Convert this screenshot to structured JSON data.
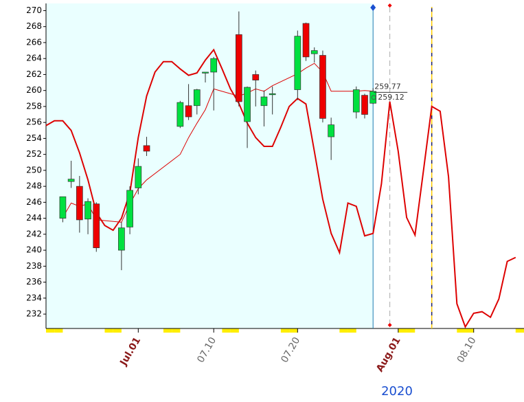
{
  "chart_data": {
    "type": "candlestick",
    "x": [
      "2020-06-22",
      "2020-06-23",
      "2020-06-24",
      "2020-06-25",
      "2020-06-26",
      "2020-06-29",
      "2020-06-30",
      "2020-07-01",
      "2020-07-02",
      "2020-07-06",
      "2020-07-07",
      "2020-07-08",
      "2020-07-09",
      "2020-07-10",
      "2020-07-13",
      "2020-07-14",
      "2020-07-15",
      "2020-07-16",
      "2020-07-17",
      "2020-07-20",
      "2020-07-21",
      "2020-07-22",
      "2020-07-23",
      "2020-07-24",
      "2020-07-27",
      "2020-07-28",
      "2020-07-29"
    ],
    "open": [
      244,
      248.6,
      248,
      243.9,
      245.8,
      240,
      242.9,
      247.8,
      253.1,
      255.5,
      258.1,
      258.1,
      262.2,
      262.3,
      267,
      256.1,
      262,
      258.1,
      259.5,
      260.1,
      268.4,
      264.6,
      264.4,
      254.2,
      257.3,
      259.4,
      258.4
    ],
    "high": [
      246.7,
      251.2,
      249.3,
      246.5,
      246,
      243.5,
      248,
      251.5,
      254.2,
      258.7,
      260.8,
      260.2,
      262.3,
      264.2,
      269.9,
      260.5,
      262.5,
      260,
      260.5,
      267.5,
      268.5,
      265.4,
      265,
      256.6,
      260.5,
      259.6,
      260.3
    ],
    "low": [
      243.5,
      247.8,
      242.2,
      242,
      239.8,
      237.5,
      242,
      247,
      251.8,
      255.3,
      256.3,
      257,
      261,
      257.5,
      258,
      252.8,
      258,
      255.5,
      257,
      258.8,
      263.7,
      263.5,
      256,
      251.3,
      256.5,
      256.5,
      258.3
    ],
    "close": [
      246.7,
      248.9,
      243.8,
      246.1,
      240.3,
      242.8,
      247.5,
      250.5,
      252.4,
      258.5,
      256.7,
      260.1,
      262.3,
      264,
      258.6,
      260.4,
      261.3,
      259.2,
      259.6,
      266.8,
      264.2,
      265,
      256.5,
      255.7,
      260.1,
      257,
      259.9
    ],
    "up_color": "#00e040",
    "down_color": "#ee0000",
    "series": [
      {
        "color": "#dd0000",
        "width": 2,
        "x": [
          "2020-06-20",
          "2020-06-21",
          "2020-06-22",
          "2020-06-23",
          "2020-06-24",
          "2020-06-25",
          "2020-06-26",
          "2020-06-27",
          "2020-06-28",
          "2020-06-29",
          "2020-06-30",
          "2020-07-01",
          "2020-07-02",
          "2020-07-03",
          "2020-07-04",
          "2020-07-05",
          "2020-07-06",
          "2020-07-07",
          "2020-07-08",
          "2020-07-09",
          "2020-07-10",
          "2020-07-11",
          "2020-07-12",
          "2020-07-13",
          "2020-07-14",
          "2020-07-15",
          "2020-07-16",
          "2020-07-17",
          "2020-07-18",
          "2020-07-19",
          "2020-07-20",
          "2020-07-21",
          "2020-07-22",
          "2020-07-23",
          "2020-07-24",
          "2020-07-25",
          "2020-07-26",
          "2020-07-27",
          "2020-07-28",
          "2020-07-29",
          "2020-07-30",
          "2020-07-31",
          "2020-08-01",
          "2020-08-02",
          "2020-08-03",
          "2020-08-04",
          "2020-08-05",
          "2020-08-06",
          "2020-08-07",
          "2020-08-08",
          "2020-08-09",
          "2020-08-10",
          "2020-08-11",
          "2020-08-12",
          "2020-08-13",
          "2020-08-14",
          "2020-08-15"
        ],
        "values": [
          255.6,
          256.2,
          256.2,
          255,
          252.2,
          248.8,
          244.7,
          243.1,
          242.5,
          244,
          247.2,
          254.1,
          259.3,
          262.3,
          263.6,
          263.6,
          262.7,
          261.9,
          262.2,
          263.8,
          265.1,
          262.7,
          260.2,
          258.4,
          255.9,
          254.1,
          253,
          253,
          255.4,
          258,
          259,
          258.3,
          252.4,
          246.4,
          242.1,
          239.7,
          245.9,
          245.5,
          241.8,
          242.1,
          248.3,
          258.6,
          252.4,
          244.1,
          241.9,
          249.9,
          258,
          257.4,
          249.2,
          233.3,
          230.4,
          232.1,
          232.3,
          231.6,
          233.9,
          238.6,
          239.1
        ]
      },
      {
        "color": "#dd0000",
        "width": 1,
        "x": [
          "2020-06-22",
          "2020-06-23",
          "2020-06-24",
          "2020-06-25",
          "2020-06-26",
          "2020-06-29",
          "2020-06-30",
          "2020-07-01",
          "2020-07-02",
          "2020-07-06",
          "2020-07-07",
          "2020-07-08",
          "2020-07-09",
          "2020-07-10",
          "2020-07-13",
          "2020-07-14",
          "2020-07-15",
          "2020-07-16",
          "2020-07-17",
          "2020-07-20",
          "2020-07-21",
          "2020-07-22",
          "2020-07-23",
          "2020-07-24",
          "2020-07-27",
          "2020-07-28",
          "2020-07-29"
        ],
        "values": [
          244.1,
          245.9,
          245.5,
          245.8,
          243.8,
          243.5,
          245.8,
          247.7,
          248.8,
          252,
          254.1,
          255.9,
          257.6,
          260.2,
          259.3,
          259.7,
          260.2,
          259.9,
          260.6,
          262.1,
          262.8,
          263.4,
          262.3,
          259.9,
          259.9,
          260,
          259.9
        ]
      }
    ],
    "price_labels": [
      259.77,
      259.12
    ],
    "vlines": [
      {
        "x": "2020-07-29",
        "color": "#1a7ab0",
        "style": "solid"
      },
      {
        "x": "2020-07-31",
        "color": "#aaaaaa",
        "style": "dashed"
      },
      {
        "x": "2020-08-05",
        "color": "#1a1a60",
        "style": "dashed"
      }
    ],
    "xlim": [
      "2020-06-20",
      "2020-08-16"
    ],
    "xticks": [
      {
        "value": "2020-07-01",
        "label": "Jul.01",
        "color": "#8b1a1a"
      },
      {
        "value": "2020-07-10",
        "label": "07.10",
        "color": "#666666"
      },
      {
        "value": "2020-07-20",
        "label": "07.20",
        "color": "#666666"
      },
      {
        "value": "2020-08-01",
        "label": "Aug.01",
        "color": "#8b1a1a"
      },
      {
        "value": "2020-08-10",
        "label": "08.10",
        "color": "#666666"
      }
    ],
    "year_label": "2020",
    "ylim": [
      230.2,
      270.9
    ],
    "yticks": [
      232,
      234,
      236,
      238,
      240,
      242,
      244,
      246,
      248,
      250,
      252,
      254,
      256,
      258,
      260,
      262,
      264,
      266,
      268,
      270
    ]
  }
}
